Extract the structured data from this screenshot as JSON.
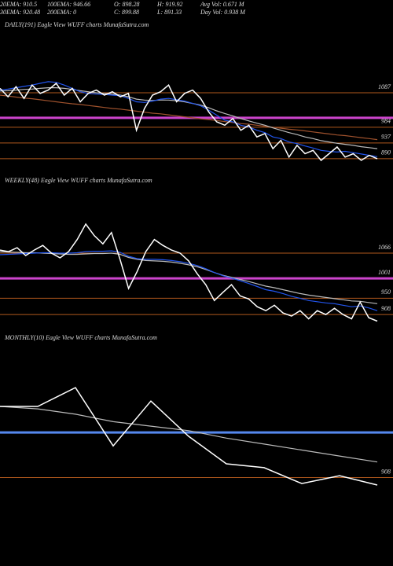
{
  "header": {
    "row1": [
      "20EMA: 910.5",
      "100EMA: 946.66",
      "O: 898.28",
      "H: 919.92",
      "Avg Vol: 0.671 M"
    ],
    "row2": [
      "30EMA: 920.48",
      "200EMA: 0",
      "C: 899.88",
      "L: 891.33",
      "Day Vol: 0.938 M"
    ]
  },
  "chart_data": [
    {
      "type": "line",
      "title": "DAILY(191) Eagle  View  WUFF charts MunafaSutra.com",
      "ylim": [
        871,
        1270
      ],
      "yticks": [
        1087,
        984,
        937,
        890
      ],
      "tick_colors": [
        "#b0581c",
        "#b0581c",
        "#b0581c",
        "#b0581c"
      ],
      "reference_lines": [
        {
          "value": 1012,
          "color": "#cc44cc"
        }
      ],
      "series": [
        {
          "name": "100EMA",
          "color": "#a0522d",
          "values": [
            1080,
            1077,
            1074,
            1071,
            1069,
            1066,
            1063,
            1060,
            1057,
            1054,
            1052,
            1049,
            1046,
            1043,
            1040,
            1038,
            1035,
            1032,
            1029,
            1026,
            1024,
            1021,
            1018,
            1015,
            1012,
            1009,
            1007,
            1004,
            1001,
            998,
            995,
            993,
            990,
            987,
            984,
            981,
            978,
            976,
            973,
            970,
            967,
            964,
            961,
            959,
            956,
            953,
            950,
            947
          ]
        },
        {
          "name": "30EMA",
          "color": "#bbbbbb",
          "values": [
            1092,
            1093,
            1095,
            1097,
            1098,
            1100,
            1102,
            1102,
            1100,
            1097,
            1093,
            1090,
            1087,
            1085,
            1083,
            1080,
            1075,
            1068,
            1065,
            1064,
            1065,
            1065,
            1063,
            1060,
            1055,
            1050,
            1042,
            1033,
            1025,
            1018,
            1010,
            1003,
            996,
            990,
            982,
            975,
            968,
            962,
            955,
            950,
            944,
            940,
            936,
            933,
            930,
            926,
            923,
            920
          ]
        },
        {
          "name": "20EMA",
          "color": "#2255ee",
          "values": [
            1095,
            1098,
            1102,
            1106,
            1110,
            1115,
            1120,
            1118,
            1110,
            1100,
            1090,
            1085,
            1083,
            1082,
            1080,
            1078,
            1070,
            1060,
            1058,
            1062,
            1068,
            1070,
            1066,
            1062,
            1055,
            1048,
            1035,
            1020,
            1005,
            1000,
            990,
            985,
            975,
            968,
            955,
            950,
            940,
            935,
            928,
            922,
            915,
            912,
            910,
            912,
            908,
            904,
            900,
            896
          ]
        },
        {
          "name": "Close",
          "color": "#ffffff",
          "values": [
            1100,
            1075,
            1105,
            1070,
            1110,
            1085,
            1095,
            1115,
            1080,
            1100,
            1060,
            1085,
            1095,
            1080,
            1090,
            1075,
            1085,
            975,
            1040,
            1080,
            1090,
            1110,
            1060,
            1085,
            1095,
            1070,
            1030,
            1000,
            990,
            1010,
            975,
            990,
            955,
            965,
            920,
            945,
            895,
            930,
            905,
            915,
            885,
            905,
            925,
            895,
            905,
            885,
            900,
            890
          ]
        }
      ]
    },
    {
      "type": "line",
      "title": "WEEKLY(48) Eagle  View  WUFF charts MunafaSutra.com",
      "ylim": [
        888,
        1232
      ],
      "yticks": [
        1066,
        1001,
        950,
        908
      ],
      "tick_colors": [
        "#b0581c",
        "#cc44cc",
        "#b0581c",
        "#b0581c"
      ],
      "series": [
        {
          "name": "30EMA",
          "color": "#bbbbbb",
          "values": [
            1070,
            1069,
            1068,
            1067,
            1067,
            1066,
            1065,
            1064,
            1063,
            1063,
            1064,
            1065,
            1065,
            1066,
            1063,
            1055,
            1050,
            1047,
            1046,
            1045,
            1043,
            1040,
            1036,
            1031,
            1024,
            1016,
            1009,
            1004,
            998,
            993,
            987,
            981,
            977,
            972,
            967,
            962,
            958,
            955,
            952,
            949,
            946,
            943,
            942,
            939,
            936
          ]
        },
        {
          "name": "20EMA",
          "color": "#2255ee",
          "values": [
            1062,
            1063,
            1064,
            1065,
            1066,
            1067,
            1067,
            1066,
            1066,
            1067,
            1070,
            1071,
            1071,
            1072,
            1068,
            1058,
            1052,
            1050,
            1050,
            1049,
            1047,
            1044,
            1040,
            1034,
            1026,
            1016,
            1008,
            1002,
            995,
            988,
            980,
            972,
            968,
            962,
            955,
            950,
            944,
            941,
            938,
            936,
            932,
            928,
            930,
            925,
            918
          ]
        },
        {
          "name": "Close",
          "color": "#ffffff",
          "values": [
            1074,
            1070,
            1080,
            1060,
            1074,
            1086,
            1066,
            1054,
            1070,
            1101,
            1141,
            1111,
            1090,
            1119,
            1050,
            975,
            1019,
            1070,
            1101,
            1086,
            1074,
            1066,
            1046,
            1013,
            985,
            944,
            965,
            985,
            956,
            948,
            928,
            918,
            932,
            912,
            904,
            918,
            897,
            918,
            908,
            924,
            908,
            897,
            940,
            900,
            891
          ]
        }
      ]
    },
    {
      "type": "line",
      "title": "MONTHLY(10) Eagle  View  WUFF charts MunafaSutra.com",
      "ylim": [
        875,
        1375
      ],
      "yticks": [
        908
      ],
      "tick_colors": [
        "#b0581c"
      ],
      "reference_lines": [
        {
          "value": 1059,
          "color": "#5588ee"
        }
      ],
      "series": [
        {
          "name": "30EMA",
          "color": "#bbbbbb",
          "values": [
            1146,
            1138,
            1120,
            1095,
            1080,
            1065,
            1040,
            1020,
            1000,
            980,
            960
          ]
        },
        {
          "name": "Close",
          "color": "#ffffff",
          "values": [
            1146,
            1146,
            1209,
            1014,
            1164,
            1046,
            954,
            941,
            888,
            914,
            883
          ]
        }
      ]
    }
  ]
}
